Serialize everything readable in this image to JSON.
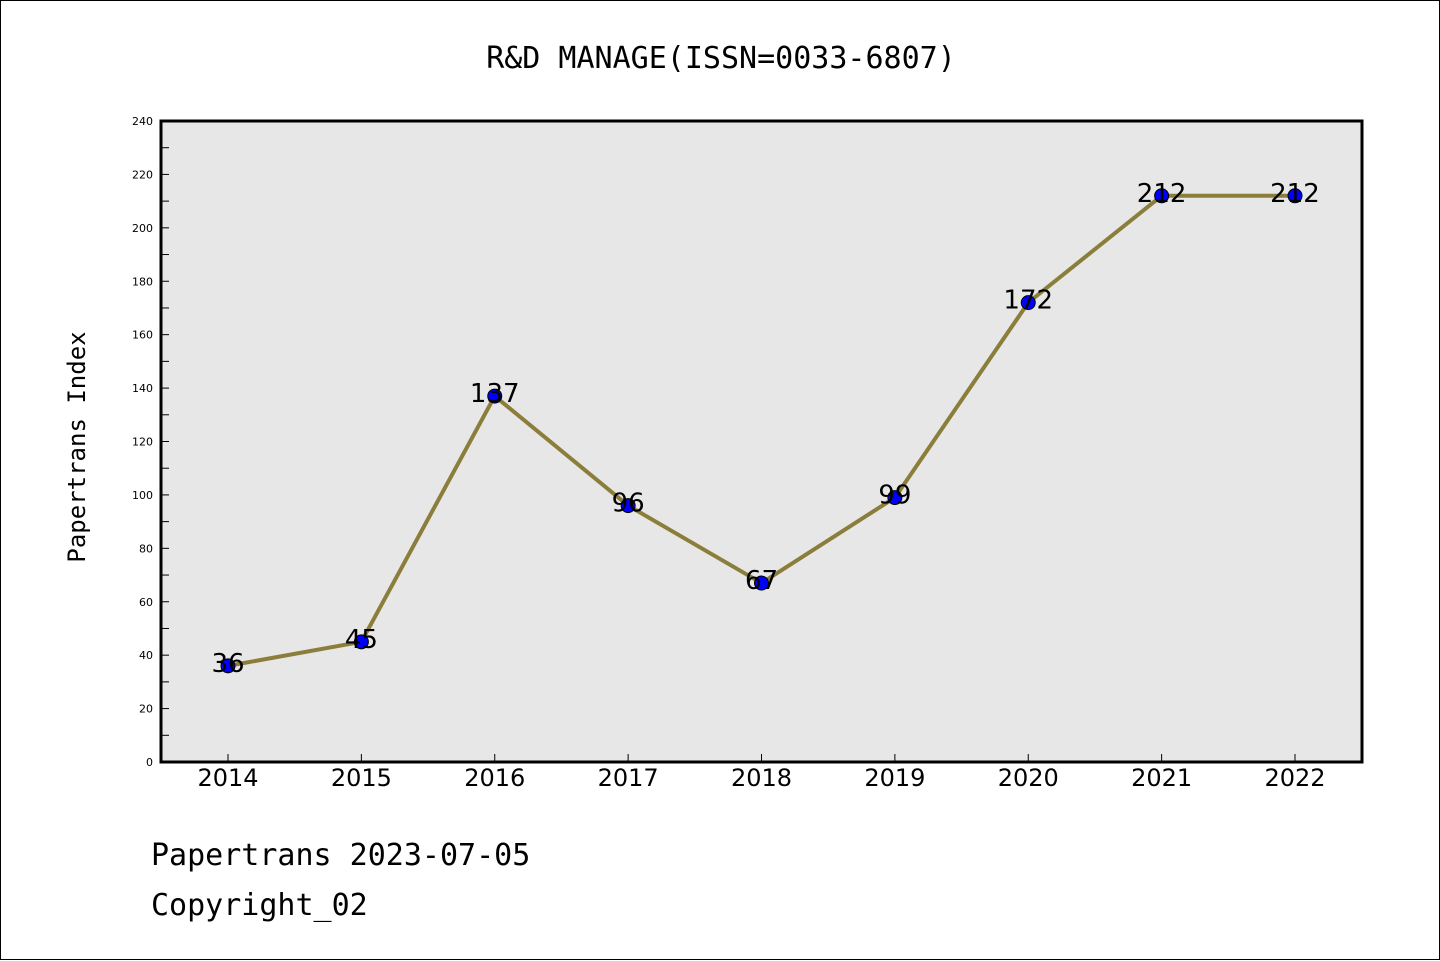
{
  "footer": {
    "line1": "Papertrans 2023-07-05",
    "line2": "Copyright_02"
  },
  "colors": {
    "plot_background": "#e7e7e7",
    "line": "#8b7d3a",
    "marker": "#0000ff",
    "marker_edge": "#000000"
  },
  "chart_data": {
    "type": "line",
    "title": "R&D MANAGE(ISSN=0033-6807)",
    "xlabel": "",
    "ylabel": "Papertrans Index",
    "categories": [
      "2014",
      "2015",
      "2016",
      "2017",
      "2018",
      "2019",
      "2020",
      "2021",
      "2022"
    ],
    "series": [
      {
        "values": [
          36,
          45,
          137,
          96,
          67,
          99,
          172,
          212,
          212
        ]
      }
    ],
    "data_labels": [
      "36",
      "45",
      "137",
      "96",
      "67",
      "99",
      "172",
      "212",
      "212"
    ],
    "ylim": [
      0,
      240
    ],
    "yticks": [
      "0",
      "20",
      "40",
      "60",
      "80",
      "100",
      "120",
      "140",
      "160",
      "180",
      "200",
      "220",
      "240"
    ],
    "grid": false,
    "legend": "none"
  }
}
